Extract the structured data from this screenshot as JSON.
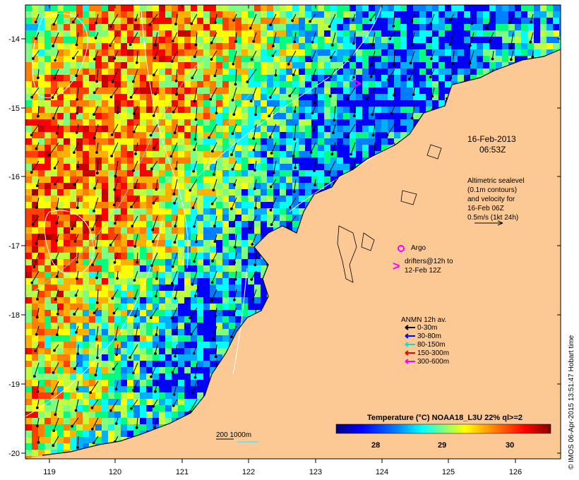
{
  "map": {
    "x_ticks": [
      "119",
      "120",
      "121",
      "122",
      "123",
      "124",
      "125",
      "126"
    ],
    "y_ticks": [
      "-14",
      "-15",
      "-16",
      "-17",
      "-18",
      "-19",
      "-20"
    ]
  },
  "timestamp": {
    "date": "16-Feb-2013",
    "time": "06:53Z"
  },
  "sealevel_note": {
    "lines": [
      "Altimetric sealevel",
      "(0.1m contours)",
      "and velocity for",
      "16-Feb 06Z",
      "0.5m/s (1kt 24h)"
    ]
  },
  "argo": {
    "label": "Argo",
    "color": "#ff00ff"
  },
  "drifters": {
    "symbol": ">",
    "lines": [
      "drifters@12h to",
      "12-Feb 12Z"
    ],
    "color": "#ff00ff"
  },
  "anmn_legend": {
    "title": "ANMN 12h av.",
    "items": [
      {
        "label": "0-30m",
        "color": "#000000"
      },
      {
        "label": "30-80m",
        "color": "#0000ff"
      },
      {
        "label": "80-150m",
        "color": "#00e0e0"
      },
      {
        "label": "150-300m",
        "color": "#ff0000"
      },
      {
        "label": "300-600m",
        "color": "#ff00ff"
      }
    ]
  },
  "depth_legend": {
    "label": "200  1000m"
  },
  "colorbar": {
    "title": "Temperature (°C) NOAA18_L3U 22% ql>=2",
    "ticks": [
      "28",
      "29",
      "30"
    ],
    "colors": [
      "#00007f",
      "#0000ff",
      "#007fff",
      "#00ffff",
      "#7fff7f",
      "#ffff00",
      "#ff7f00",
      "#ff0000",
      "#7f0000"
    ]
  },
  "credit": {
    "text": "© IMOS 06-Apr-2015 13:51:47 Hobart time"
  },
  "colors": {
    "land": "#fcc995",
    "frame": "#000000"
  }
}
